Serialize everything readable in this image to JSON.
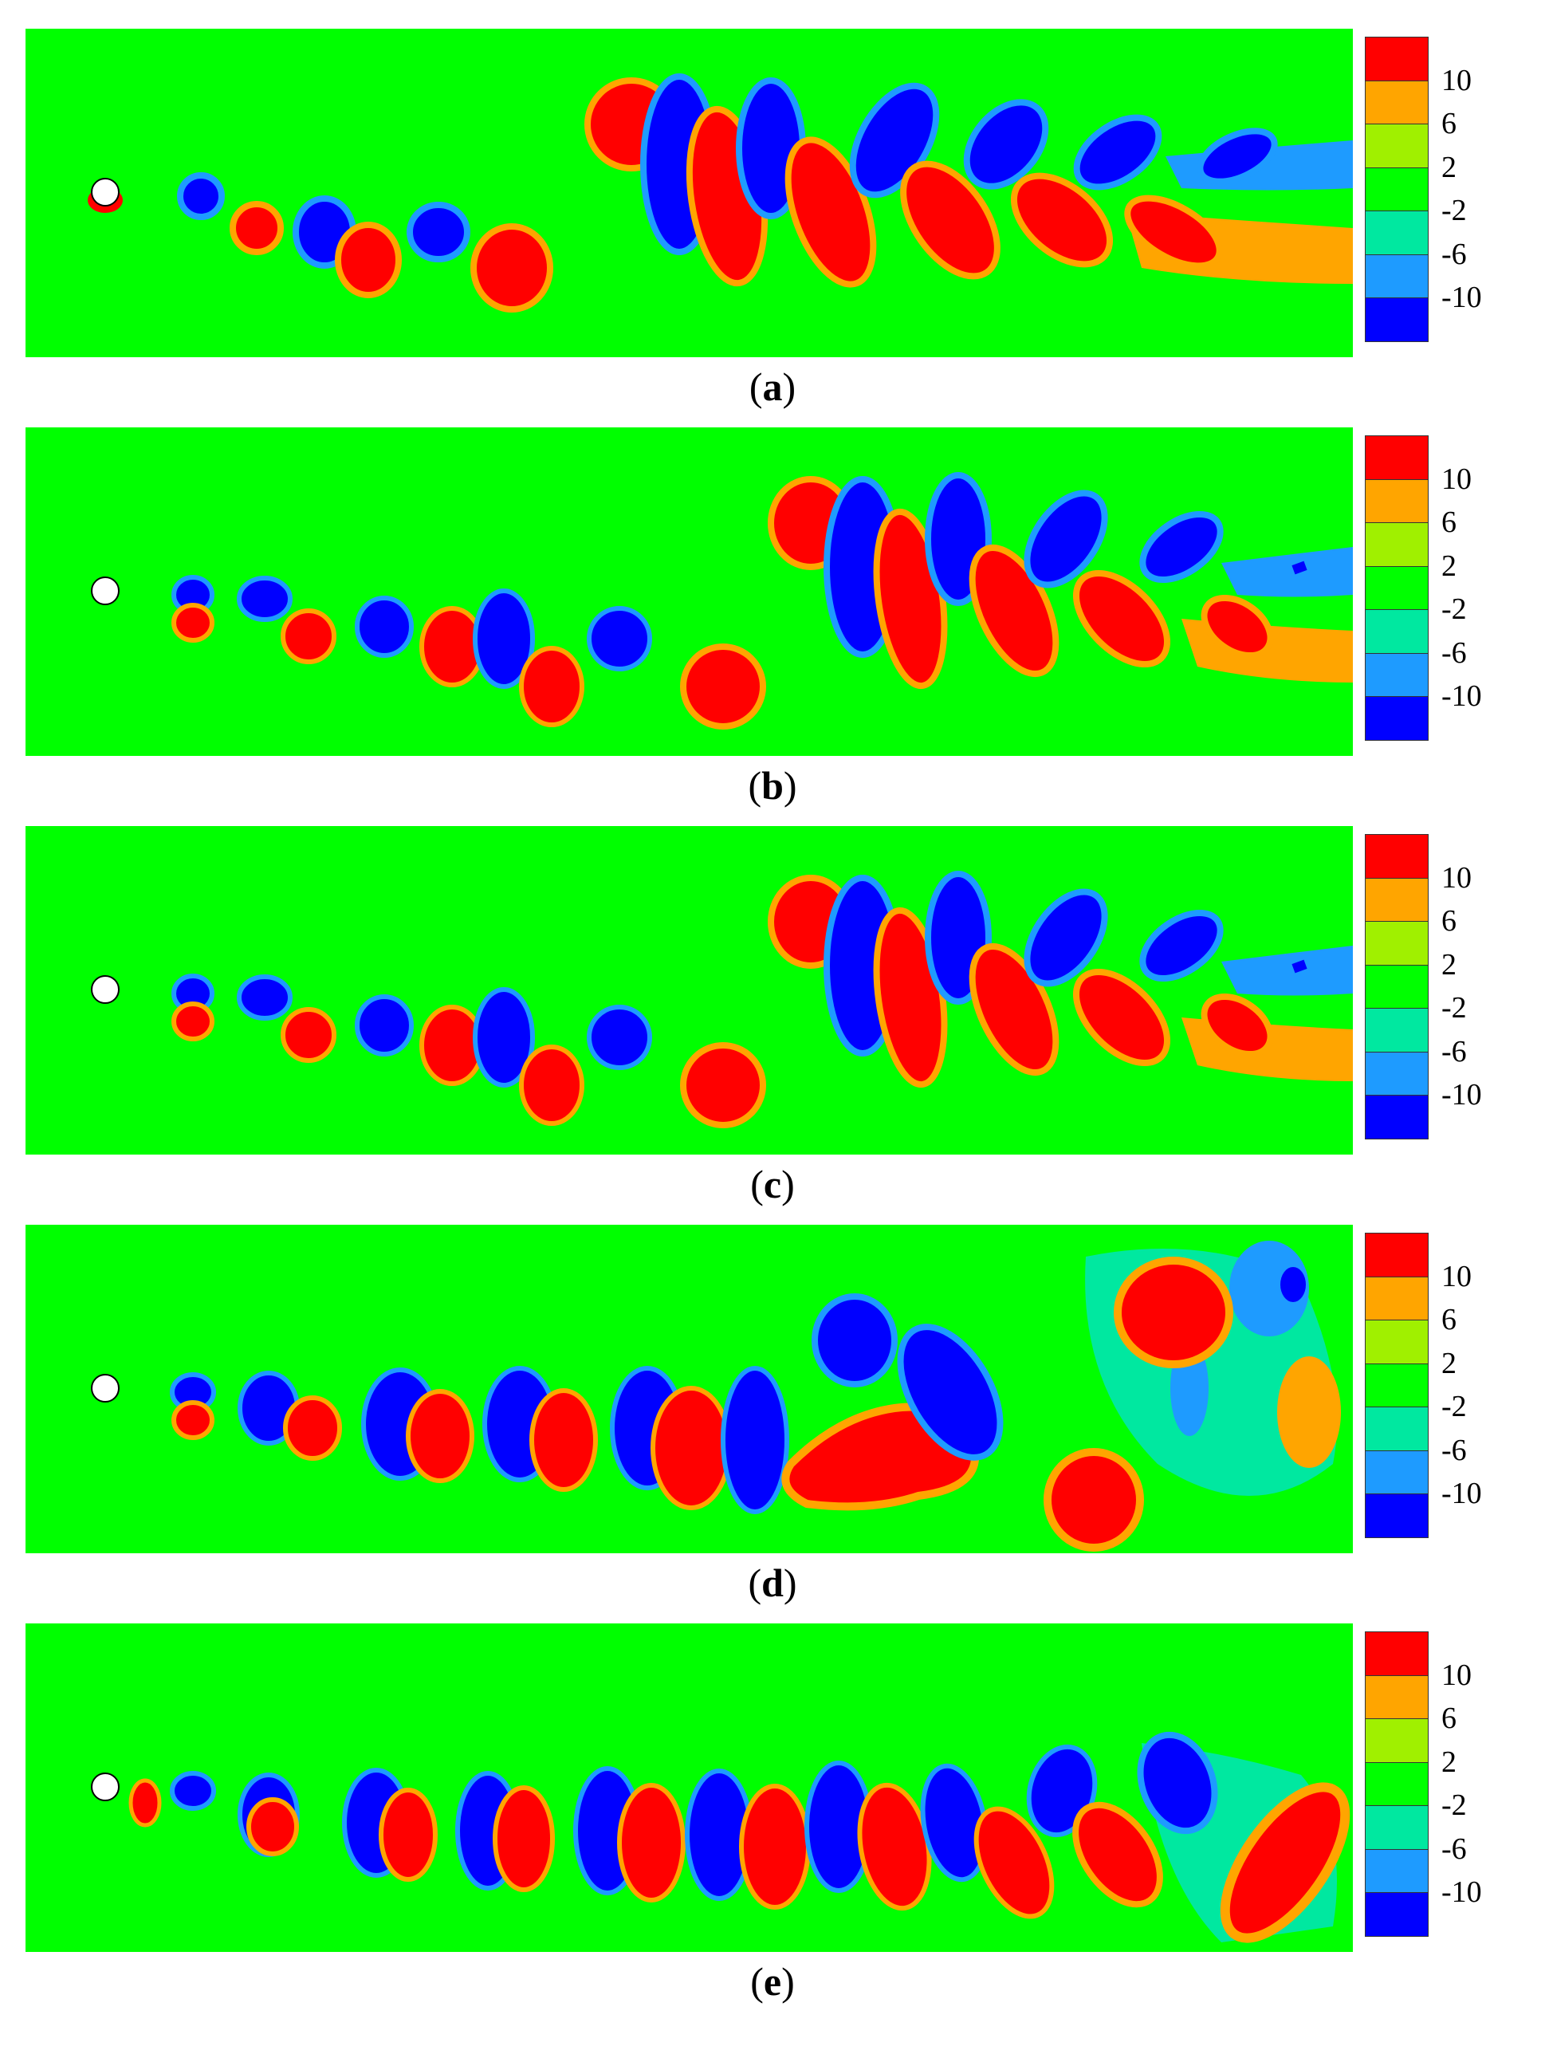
{
  "colors": {
    "background": "#00ff00",
    "positive_strong": "#ff0000",
    "negative_strong": "#0000ff",
    "positive_mid": "#ffa500",
    "negative_mid": "#1e9bff",
    "positive_low": "#a0f000",
    "negative_low": "#00e8a0",
    "cylinder": "#ffffff"
  },
  "legend": {
    "levels": [
      "10",
      "6",
      "2",
      "-2",
      "-6",
      "-10"
    ],
    "swatch_colors": [
      "#ff0000",
      "#ffa500",
      "#a0f000",
      "#00ff00",
      "#00e8a0",
      "#1e9bff",
      "#0000ff"
    ]
  },
  "panels": [
    {
      "label": "a"
    },
    {
      "label": "b"
    },
    {
      "label": "c"
    },
    {
      "label": "d"
    },
    {
      "label": "e"
    }
  ]
}
